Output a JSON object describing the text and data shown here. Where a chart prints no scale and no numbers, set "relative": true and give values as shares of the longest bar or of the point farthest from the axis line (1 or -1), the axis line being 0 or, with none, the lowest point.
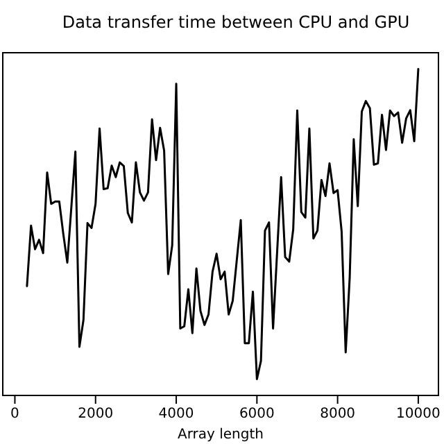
{
  "chart_data": {
    "type": "line",
    "title": "Data transfer time between CPU and GPU",
    "xlabel": "Array length",
    "relative": true,
    "xlim": [
      -300,
      10500
    ],
    "xticks": [
      0,
      2000,
      4000,
      6000,
      8000,
      10000
    ],
    "grid": false,
    "x": [
      300,
      400,
      500,
      600,
      700,
      800,
      900,
      1000,
      1100,
      1200,
      1300,
      1500,
      1600,
      1700,
      1800,
      1900,
      2000,
      2100,
      2200,
      2300,
      2400,
      2500,
      2600,
      2700,
      2800,
      2900,
      3000,
      3100,
      3200,
      3300,
      3400,
      3500,
      3600,
      3700,
      3800,
      3900,
      4000,
      4100,
      4200,
      4300,
      4400,
      4500,
      4600,
      4700,
      4800,
      4900,
      5000,
      5100,
      5200,
      5300,
      5400,
      5600,
      5700,
      5800,
      5900,
      6000,
      6100,
      6200,
      6300,
      6400,
      6600,
      6700,
      6800,
      6900,
      7000,
      7100,
      7200,
      7300,
      7400,
      7500,
      7600,
      7700,
      7800,
      7900,
      8000,
      8100,
      8200,
      8300,
      8400,
      8500,
      8600,
      8700,
      8800,
      8900,
      9000,
      9100,
      9200,
      9300,
      9400,
      9500,
      9600,
      9700,
      9800,
      9900,
      10000
    ],
    "series": [
      {
        "color": "#000000",
        "values": [
          0.335,
          0.52,
          0.448,
          0.477,
          0.436,
          0.683,
          0.587,
          0.594,
          0.594,
          0.495,
          0.407,
          0.747,
          0.149,
          0.231,
          0.528,
          0.513,
          0.587,
          0.818,
          0.632,
          0.635,
          0.704,
          0.669,
          0.714,
          0.703,
          0.559,
          0.53,
          0.714,
          0.622,
          0.597,
          0.622,
          0.846,
          0.721,
          0.82,
          0.75,
          0.372,
          0.46,
          0.955,
          0.205,
          0.212,
          0.325,
          0.191,
          0.389,
          0.259,
          0.216,
          0.248,
          0.379,
          0.434,
          0.356,
          0.379,
          0.248,
          0.29,
          0.537,
          0.16,
          0.16,
          0.318,
          0.05,
          0.106,
          0.505,
          0.53,
          0.205,
          0.669,
          0.424,
          0.41,
          0.509,
          0.873,
          0.562,
          0.545,
          0.818,
          0.481,
          0.505,
          0.66,
          0.611,
          0.711,
          0.62,
          0.629,
          0.502,
          0.132,
          0.361,
          0.785,
          0.58,
          0.87,
          0.902,
          0.88,
          0.707,
          0.711,
          0.86,
          0.752,
          0.873,
          0.856,
          0.867,
          0.774,
          0.849,
          0.874,
          0.779,
          1.0
        ]
      }
    ]
  }
}
